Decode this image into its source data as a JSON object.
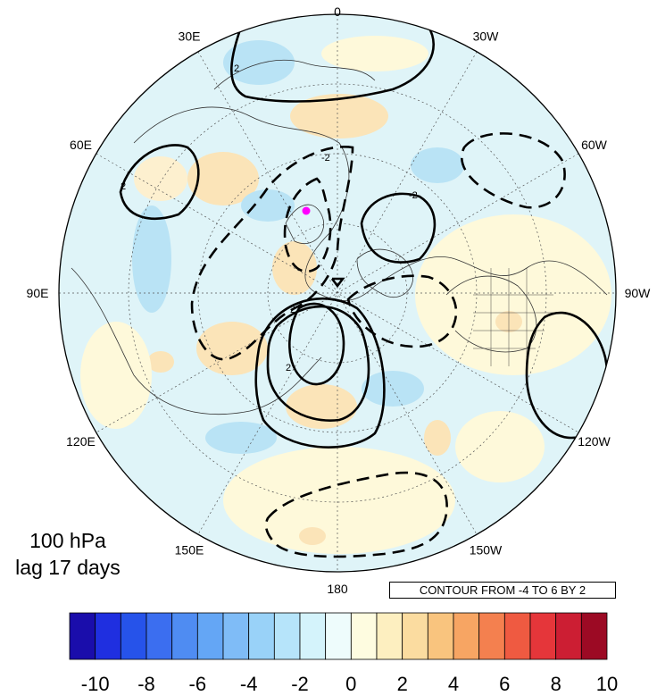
{
  "level_label": "100 hPa",
  "lag_label": "lag 17 days",
  "contour_info": "CONTOUR FROM -4 TO 6 BY 2",
  "longitude_labels": [
    {
      "text": "0",
      "lon": 0
    },
    {
      "text": "30W",
      "lon": -30
    },
    {
      "text": "60W",
      "lon": -60
    },
    {
      "text": "90W",
      "lon": -90
    },
    {
      "text": "120W",
      "lon": -120
    },
    {
      "text": "150W",
      "lon": -150
    },
    {
      "text": "180",
      "lon": 180
    },
    {
      "text": "150E",
      "lon": 150
    },
    {
      "text": "120E",
      "lon": 120
    },
    {
      "text": "90E",
      "lon": 90
    },
    {
      "text": "60E",
      "lon": 60
    },
    {
      "text": "30E",
      "lon": 30
    }
  ],
  "contour_labels": [
    {
      "text": "2"
    },
    {
      "text": "2"
    },
    {
      "text": "-2"
    },
    {
      "text": "2"
    },
    {
      "text": "2"
    },
    {
      "text": "-2"
    }
  ],
  "colorbar": {
    "colors": [
      "#1a0dab",
      "#1f2fe0",
      "#2653ea",
      "#3b6ef0",
      "#4f8cf2",
      "#64a6f5",
      "#7fbcf7",
      "#99d2f8",
      "#b6e4fa",
      "#d4f3fb",
      "#eefcfc",
      "#fefce0",
      "#fdefc0",
      "#fbdca0",
      "#f9c47e",
      "#f7a563",
      "#f4804f",
      "#ef5a41",
      "#e5363a",
      "#cc1e33",
      "#9c0a24"
    ],
    "tick_labels": [
      "-10",
      "-8",
      "-6",
      "-4",
      "-2",
      "0",
      "2",
      "4",
      "6",
      "8",
      "10"
    ]
  },
  "marker_color": "#ff00ff"
}
